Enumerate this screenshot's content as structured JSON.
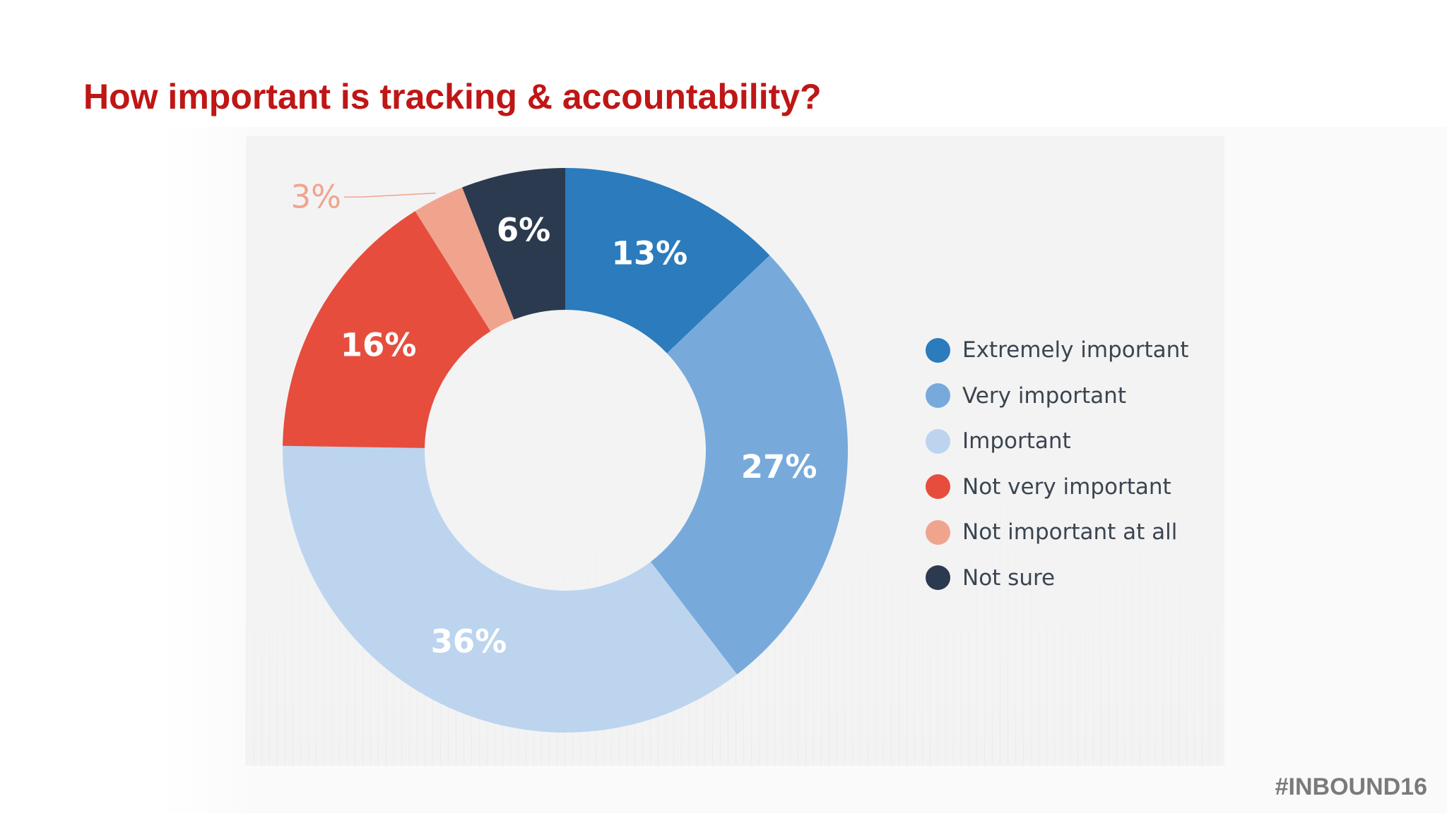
{
  "title": "How important is tracking & accountability?",
  "footer_tag": "#INBOUND16",
  "chart_data": {
    "type": "pie",
    "variant": "donut",
    "title": "",
    "legend_position": "right",
    "start": "top, clockwise",
    "categories": [
      "Extremely important",
      "Very important",
      "Important",
      "Not very important",
      "Not important at all",
      "Not sure"
    ],
    "values": [
      13,
      27,
      36,
      16,
      3,
      6
    ],
    "labels": [
      "13%",
      "27%",
      "36%",
      "16%",
      "3%",
      "6%"
    ],
    "colors": [
      "#2b7bbd",
      "#77aadb",
      "#bcd4ee",
      "#e64d3d",
      "#f0a48e",
      "#2b3a4e"
    ]
  }
}
